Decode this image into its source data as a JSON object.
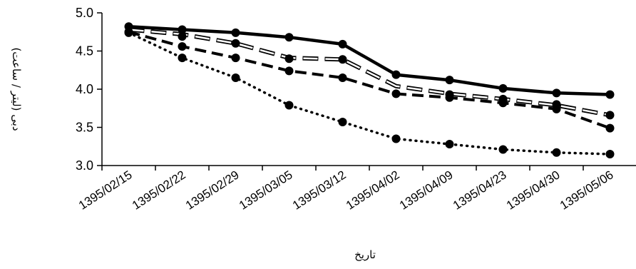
{
  "chart_data": {
    "type": "line",
    "title": "",
    "xlabel": "تاریخ",
    "ylabel": "دبی (لیتر / ساعت)",
    "ylim": [
      3.0,
      5.0
    ],
    "yticks": [
      "3.0",
      "3.5",
      "4.0",
      "4.5",
      "5.0"
    ],
    "categories": [
      "1395/02/15",
      "1395/02/22",
      "1395/02/29",
      "1395/03/05",
      "1395/03/12",
      "1395/04/02",
      "1395/04/09",
      "1395/04/23",
      "1395/04/30",
      "1395/05/06"
    ],
    "grid": false,
    "legend": "none",
    "series": [
      {
        "style": "solid-thick",
        "markers": true,
        "values": [
          4.82,
          4.78,
          4.74,
          4.68,
          4.59,
          4.19,
          4.12,
          4.01,
          3.95,
          3.93
        ]
      },
      {
        "style": "double-dash-open",
        "markers": false,
        "values": [
          4.78,
          4.72,
          4.6,
          4.41,
          4.39,
          4.04,
          3.94,
          3.87,
          3.79,
          3.66
        ]
      },
      {
        "style": "dashed",
        "markers": true,
        "values": [
          4.75,
          4.56,
          4.41,
          4.24,
          4.15,
          3.94,
          3.89,
          3.82,
          3.74,
          3.49
        ]
      },
      {
        "style": "dotted",
        "markers": true,
        "values": [
          4.74,
          4.41,
          4.15,
          3.79,
          3.57,
          3.35,
          3.28,
          3.21,
          3.17,
          3.15
        ]
      }
    ],
    "extra_markers": [
      {
        "category_index": 1,
        "value": 4.69
      },
      {
        "category_index": 2,
        "value": 4.6
      },
      {
        "category_index": 3,
        "value": 4.4
      },
      {
        "category_index": 4,
        "value": 4.39
      },
      {
        "category_index": 6,
        "value": 3.93
      },
      {
        "category_index": 7,
        "value": 3.87
      },
      {
        "category_index": 8,
        "value": 3.8
      },
      {
        "category_index": 9,
        "value": 3.66
      }
    ]
  }
}
